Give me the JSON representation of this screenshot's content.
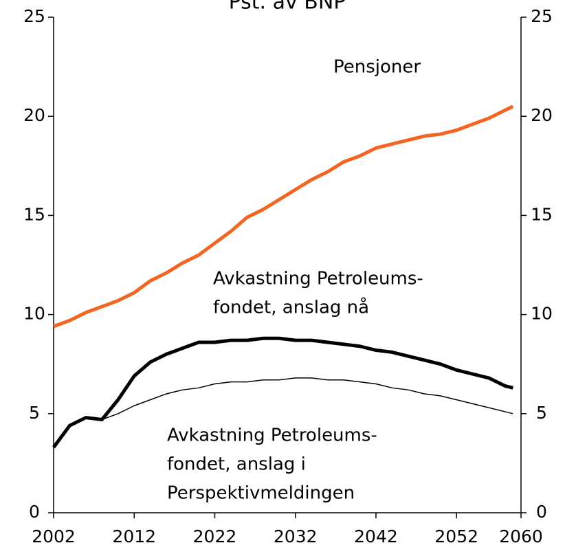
{
  "chart_data": {
    "type": "line",
    "title": "Pst. av BNP",
    "x": [
      2002,
      2004,
      2006,
      2008,
      2010,
      2012,
      2014,
      2016,
      2018,
      2020,
      2022,
      2024,
      2026,
      2028,
      2030,
      2032,
      2034,
      2036,
      2038,
      2040,
      2042,
      2044,
      2046,
      2048,
      2050,
      2052,
      2054,
      2056,
      2058,
      2059
    ],
    "series": [
      {
        "color": "#f26522",
        "width": 5,
        "values": [
          9.4,
          9.7,
          10.1,
          10.4,
          10.7,
          11.1,
          11.7,
          12.1,
          12.6,
          13.0,
          13.6,
          14.2,
          14.9,
          15.3,
          15.8,
          16.3,
          16.8,
          17.2,
          17.7,
          18.0,
          18.4,
          18.6,
          18.8,
          19.0,
          19.1,
          19.3,
          19.6,
          19.9,
          20.3,
          20.5
        ]
      },
      {
        "color": "#000000",
        "width": 5,
        "values": [
          3.3,
          4.4,
          4.8,
          4.7,
          5.7,
          6.9,
          7.6,
          8.0,
          8.3,
          8.6,
          8.6,
          8.7,
          8.7,
          8.8,
          8.8,
          8.7,
          8.7,
          8.6,
          8.5,
          8.4,
          8.2,
          8.1,
          7.9,
          7.7,
          7.5,
          7.2,
          7.0,
          6.8,
          6.4,
          6.3
        ]
      },
      {
        "color": "#000000",
        "width": 1.5,
        "values": [
          3.3,
          4.4,
          4.8,
          4.7,
          5.0,
          5.4,
          5.7,
          6.0,
          6.2,
          6.3,
          6.5,
          6.6,
          6.6,
          6.7,
          6.7,
          6.8,
          6.8,
          6.7,
          6.7,
          6.6,
          6.5,
          6.3,
          6.2,
          6.0,
          5.9,
          5.7,
          5.5,
          5.3,
          5.1,
          5.0
        ]
      }
    ],
    "xlim": [
      2002,
      2060
    ],
    "xticks": [
      2002,
      2012,
      2022,
      2032,
      2042,
      2052,
      2060
    ],
    "ylim": [
      0,
      25
    ],
    "yticks": [
      0,
      5,
      10,
      15,
      20,
      25
    ],
    "y2lim": [
      0,
      25
    ],
    "y2ticks": [
      0,
      5,
      10,
      15,
      20,
      25
    ],
    "annotations": [
      {
        "lines": [
          "Pensjoner"
        ]
      },
      {
        "lines": [
          "Avkastning Petroleums-",
          "fondet, anslag nå"
        ]
      },
      {
        "lines": [
          "Avkastning Petroleums-",
          "fondet, anslag i",
          "Perspektivmeldingen"
        ]
      }
    ]
  }
}
